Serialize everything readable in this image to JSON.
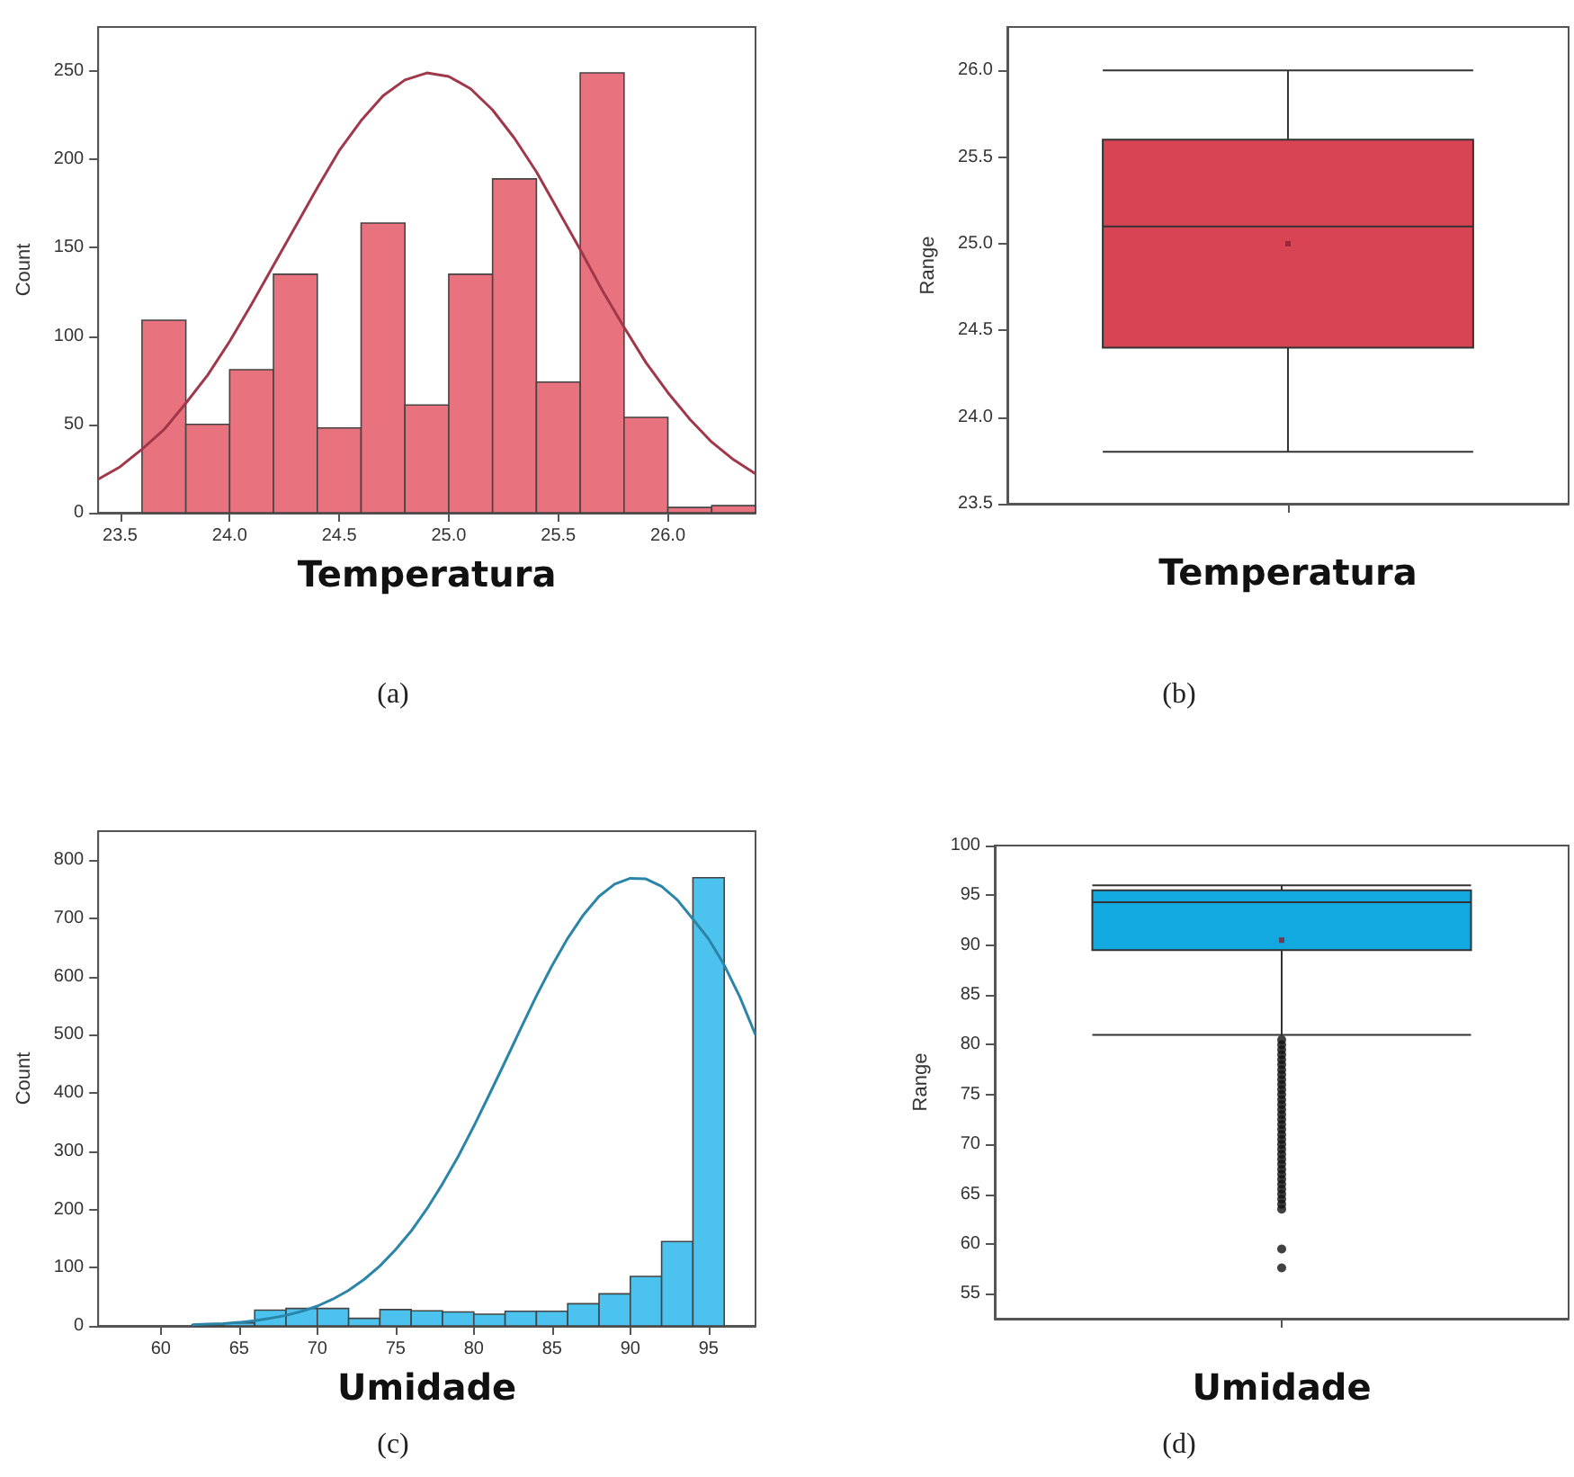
{
  "chart_data": [
    {
      "type": "histogram",
      "xlabel": "Temperatura",
      "ylabel": "Count",
      "annotations": [
        "(a)"
      ],
      "xlim": [
        23.4,
        26.4
      ],
      "xticks": [
        23.5,
        {
          "value": 24,
          "label": "24.0"
        },
        24.5,
        {
          "value": 25,
          "label": "25.0"
        },
        25.5,
        {
          "value": 26,
          "label": "26.0"
        }
      ],
      "ylim": [
        0,
        275
      ],
      "yticks": [
        0,
        50,
        100,
        150,
        200,
        250
      ],
      "series": [
        {
          "type": "histogram",
          "color": "#e8737f",
          "bins": [
            23.6,
            23.8,
            24.0,
            24.2,
            24.4,
            24.6,
            24.8,
            25.0,
            25.2,
            25.4,
            25.6,
            25.8,
            26.0,
            26.2,
            26.4
          ],
          "values": [
            109,
            50,
            81,
            135,
            48,
            164,
            61,
            135,
            189,
            74,
            249,
            54,
            3,
            4
          ]
        },
        {
          "type": "line",
          "color": "#a0384a",
          "marker": "none",
          "x": [
            23.4,
            23.5,
            23.6,
            23.7,
            23.8,
            23.9,
            24.0,
            24.1,
            24.2,
            24.3,
            24.4,
            24.5,
            24.6,
            24.7,
            24.8,
            24.9,
            25.0,
            25.1,
            25.2,
            25.3,
            25.4,
            25.5,
            25.6,
            25.7,
            25.8,
            25.9,
            26.0,
            26.1,
            26.2,
            26.3,
            26.4
          ],
          "values": [
            19,
            26,
            36,
            47,
            62,
            78,
            97,
            118,
            140,
            162,
            184,
            205,
            222,
            236,
            245,
            249,
            247,
            240,
            228,
            212,
            193,
            171,
            149,
            126,
            105,
            85,
            68,
            53,
            40,
            30,
            22
          ]
        }
      ]
    },
    {
      "type": "box",
      "categories": [
        null
      ],
      "xlabel": "Temperatura",
      "ylabel": "Range",
      "annotations": [
        "(b)"
      ],
      "ylim": [
        23.5,
        26.25
      ],
      "yticks": [
        23.5,
        {
          "value": 24,
          "label": "24.0"
        },
        24.5,
        {
          "value": 25,
          "label": "25.0"
        },
        25.5,
        {
          "value": 26,
          "label": "26.0"
        }
      ],
      "series": [
        {
          "color": "#d94455",
          "boxes": [
            {
              "low": 23.8,
              "q1": 24.4,
              "median": 25.1,
              "q3": 25.6,
              "high": 26.0,
              "mean": 25.0
            }
          ]
        }
      ]
    },
    {
      "type": "histogram",
      "xlabel": "Umidade",
      "ylabel": "Count",
      "annotations": [
        "(c)"
      ],
      "xlim": [
        56,
        98
      ],
      "xticks": [
        60,
        65,
        70,
        75,
        80,
        85,
        90,
        95
      ],
      "ylim": [
        0,
        850
      ],
      "yticks": [
        0,
        100,
        200,
        300,
        400,
        500,
        600,
        700,
        800
      ],
      "series": [
        {
          "type": "histogram",
          "color": "#4cc3ef",
          "bins": [
            62,
            64,
            66,
            68,
            70,
            72,
            74,
            76,
            78,
            80,
            82,
            84,
            86,
            88,
            90,
            92,
            94,
            96,
            98
          ],
          "values": [
            2,
            5,
            27,
            30,
            30,
            13,
            28,
            26,
            24,
            20,
            25,
            25,
            38,
            55,
            85,
            145,
            770,
            null
          ]
        },
        {
          "type": "line",
          "color": "#2a85a8",
          "marker": "none",
          "x": [
            62,
            63,
            64,
            65,
            66,
            67,
            68,
            69,
            70,
            71,
            72,
            73,
            74,
            75,
            76,
            77,
            78,
            79,
            80,
            81,
            82,
            83,
            84,
            85,
            86,
            87,
            88,
            89,
            90,
            91,
            92,
            93,
            94,
            95,
            96,
            97,
            98
          ],
          "values": [
            2,
            3,
            4,
            6,
            9,
            13,
            18,
            25,
            34,
            46,
            61,
            80,
            103,
            131,
            163,
            201,
            244,
            291,
            343,
            398,
            454,
            511,
            567,
            619,
            666,
            706,
            738,
            759,
            769,
            768,
            755,
            732,
            699,
            665,
            620,
            565,
            500
          ]
        }
      ]
    },
    {
      "type": "box",
      "categories": [
        null
      ],
      "xlabel": "Umidade",
      "ylabel": "Range",
      "annotations": [
        "(d)"
      ],
      "ylim": [
        52.5,
        100
      ],
      "yticks": [
        55,
        60,
        65,
        70,
        75,
        80,
        85,
        90,
        95,
        100
      ],
      "series": [
        {
          "color": "#12a9e0",
          "boxes": [
            {
              "low": 81,
              "q1": 89.5,
              "median": 94.3,
              "q3": 95.5,
              "high": 96,
              "mean": 90.5,
              "outliers": [
                80.5,
                80,
                79.5,
                79,
                78.5,
                78,
                77.5,
                77,
                76.5,
                76,
                75.5,
                75,
                74.5,
                74,
                73.5,
                73,
                72.5,
                72,
                71.5,
                71,
                70.5,
                70,
                69.5,
                69,
                68.5,
                68,
                67.5,
                67,
                66.5,
                66,
                65.5,
                65,
                64.5,
                64,
                63.5,
                59.5,
                57.6
              ]
            }
          ]
        }
      ]
    }
  ]
}
